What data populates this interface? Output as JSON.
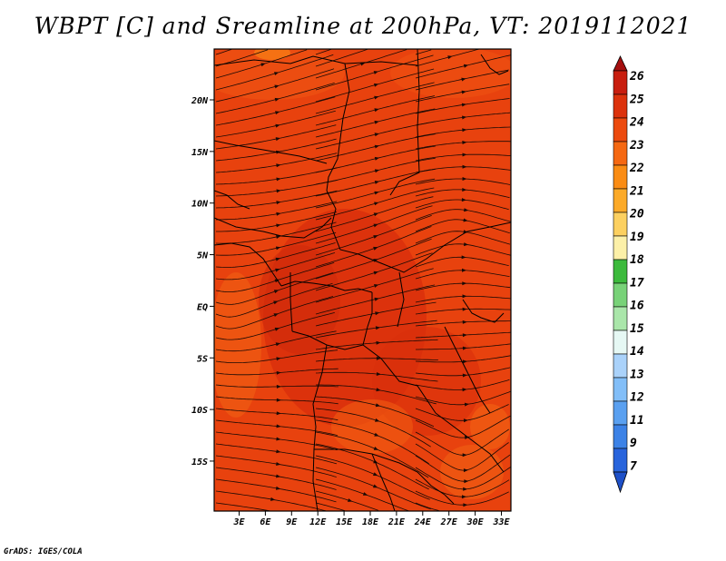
{
  "title": "WBPT [C] and Sreamline at 200hPa, VT: 2019112021",
  "footer": "GrADS: IGES/COLA",
  "map": {
    "lat_labels": [
      "20N",
      "15N",
      "10N",
      "5N",
      "EQ",
      "5S",
      "10S",
      "15S"
    ],
    "lon_labels": [
      "3E",
      "6E",
      "9E",
      "12E",
      "15E",
      "18E",
      "21E",
      "24E",
      "27E",
      "30E",
      "33E"
    ],
    "fill_colors": {
      "dominant": "#e8420e",
      "dark": "#d82e0c",
      "light": "#f05c12",
      "orange": "#f77a14"
    }
  },
  "colorbar": {
    "labels": [
      "26",
      "25",
      "24",
      "23",
      "22",
      "21",
      "20",
      "19",
      "18",
      "17",
      "16",
      "15",
      "14",
      "13",
      "12",
      "11",
      "9",
      "7"
    ],
    "colors": [
      "#a50f0f",
      "#c81e0f",
      "#dc320c",
      "#ec4a0e",
      "#f56812",
      "#fa8c14",
      "#fcaa28",
      "#fcd060",
      "#fcf0a8",
      "#3cba3c",
      "#78d278",
      "#aae6aa",
      "#e6f8f4",
      "#aad2fa",
      "#82bef8",
      "#5aa0f0",
      "#3c82e6",
      "#2864dc",
      "#1e50c8"
    ]
  }
}
